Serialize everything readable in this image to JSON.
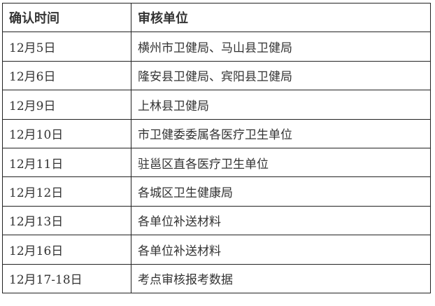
{
  "headers": [
    "确认时间",
    "审核单位"
  ],
  "rows": [
    {
      "date": "12月5日",
      "unit": "横州市卫健局、马山县卫健局"
    },
    {
      "date": "12月6日",
      "unit": "隆安县卫健局、宾阳县卫健局"
    },
    {
      "date": "12月9日",
      "unit": "上林县卫健局"
    },
    {
      "date": "12月10日",
      "unit": "市卫健委委属各医疗卫生单位"
    },
    {
      "date": "12月11日",
      "unit": "驻邕区直各医疗卫生单位"
    },
    {
      "date": "12月12日",
      "unit": "各城区卫生健康局"
    },
    {
      "date": "12月13日",
      "unit": "各单位补送材料"
    },
    {
      "date": "12月16日",
      "unit": "各单位补送材料"
    },
    {
      "date": "12月17-18日",
      "unit": "考点审核报考数据"
    }
  ]
}
